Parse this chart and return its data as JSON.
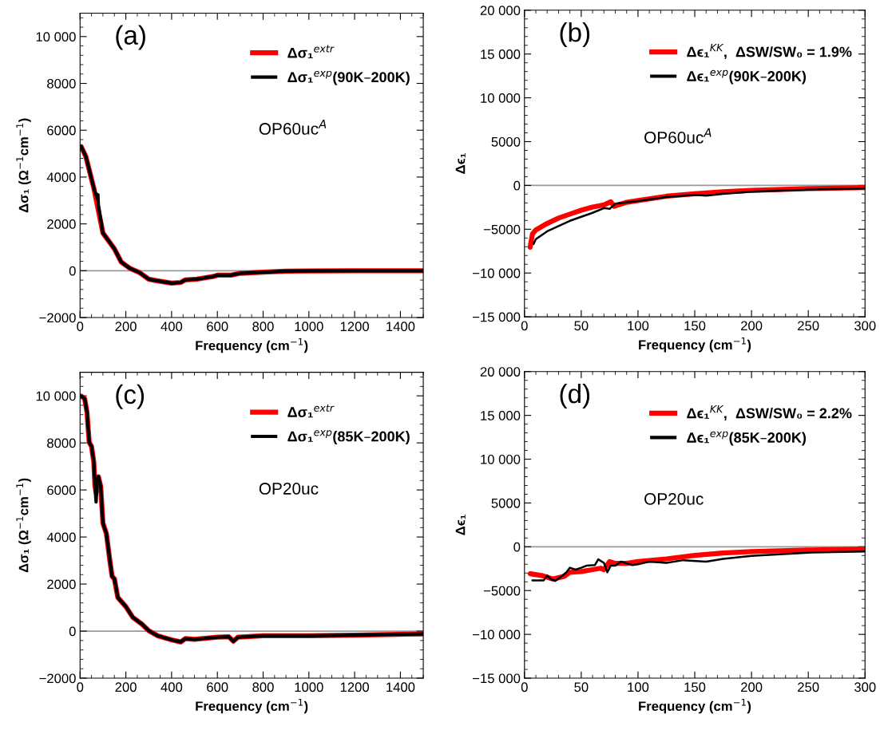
{
  "chart_data": [
    {
      "type": "line",
      "xlabel": "Frequency (cm$^{−1}$)",
      "ylabel": "Δσ₁ (Ω$^{−1}$cm$^{−1}$)",
      "annotations": [
        "(a)",
        "OP60uc$^{A}$"
      ],
      "xlim": [
        0,
        1500
      ],
      "xticks": [
        0,
        200,
        400,
        600,
        800,
        1000,
        1200,
        1400
      ],
      "ylim": [
        -2000,
        11000
      ],
      "yticks": [
        {
          "value": -2000,
          "label": "−2000"
        },
        0,
        2000,
        4000,
        6000,
        8000,
        {
          "value": 10000,
          "label": "10 000"
        }
      ],
      "legend": "top right",
      "grid": false,
      "ref_lines": [
        {
          "axis": "y",
          "value": 0,
          "color": "#999999"
        }
      ],
      "series": [
        {
          "name": "Δσ₁$^{extr}$",
          "color": "#ff0000",
          "x": [
            5,
            25,
            60,
            100,
            150,
            180,
            220,
            260,
            300,
            330,
            400,
            440,
            460,
            510,
            580,
            600,
            660,
            700,
            800,
            900,
            1000,
            1200,
            1500
          ],
          "values": [
            5300,
            4880,
            3530,
            1610,
            935,
            370,
            90,
            -80,
            -360,
            -420,
            -530,
            -500,
            -390,
            -360,
            -250,
            -190,
            -190,
            -110,
            -60,
            -20,
            -10,
            0,
            0
          ]
        },
        {
          "name": "Δσ₁$^{exp}$(90K–200K)",
          "color": "#000000",
          "x": [
            5,
            25,
            60,
            75,
            78,
            80,
            100,
            150,
            180,
            220,
            260,
            300,
            330,
            400,
            440,
            460,
            510,
            580,
            600,
            660,
            700,
            800,
            900,
            1000,
            1200,
            1500
          ],
          "values": [
            5300,
            4880,
            3530,
            3080,
            3250,
            2800,
            1610,
            935,
            370,
            90,
            -80,
            -360,
            -420,
            -530,
            -500,
            -390,
            -360,
            -250,
            -190,
            -190,
            -110,
            -60,
            -20,
            -10,
            0,
            0
          ]
        }
      ]
    },
    {
      "type": "line",
      "xlabel": "Frequency (cm$^{−1}$)",
      "ylabel": "Δϵ₁",
      "annotations": [
        "(b)",
        "OP60uc$^{A}$"
      ],
      "xlim": [
        0,
        300
      ],
      "xticks": [
        0,
        50,
        100,
        150,
        200,
        250,
        300
      ],
      "ylim": [
        -15000,
        20000
      ],
      "yticks": [
        {
          "value": -15000,
          "label": "−15 000"
        },
        {
          "value": -10000,
          "label": "−10 000"
        },
        {
          "value": -5000,
          "label": "−5000"
        },
        0,
        5000,
        {
          "value": 10000,
          "label": "10 000"
        },
        {
          "value": 15000,
          "label": "15 000"
        },
        {
          "value": 20000,
          "label": "20 000"
        }
      ],
      "legend": "top right",
      "grid": false,
      "ref_lines": [
        {
          "axis": "y",
          "value": 0,
          "color": "#999999"
        }
      ],
      "series": [
        {
          "name": "Δϵ₁$^{KK}$,  ΔSW/SW₀ = 1.9%",
          "color": "#ff0000",
          "x": [
            5,
            7,
            10,
            20,
            30,
            40,
            50,
            60,
            70,
            76,
            79,
            90,
            100,
            125,
            150,
            175,
            200,
            250,
            300
          ],
          "values": [
            -7050,
            -5540,
            -5090,
            -4340,
            -3735,
            -3280,
            -2830,
            -2470,
            -2230,
            -1870,
            -2380,
            -1930,
            -1720,
            -1235,
            -960,
            -720,
            -570,
            -360,
            -250
          ]
        },
        {
          "name": "Δϵ₁$^{exp}$(90K–200K)",
          "color": "#000000",
          "x": [
            8,
            10,
            20,
            30,
            40,
            50,
            60,
            70,
            75,
            80,
            100,
            125,
            150,
            160,
            175,
            200,
            250,
            300
          ],
          "values": [
            -6690,
            -6140,
            -5240,
            -4640,
            -4040,
            -3580,
            -3130,
            -2590,
            -2680,
            -2080,
            -1780,
            -1330,
            -1080,
            -1170,
            -960,
            -720,
            -480,
            -360
          ]
        }
      ]
    },
    {
      "type": "line",
      "xlabel": "Frequency (cm$^{−1}$)",
      "ylabel": "Δσ₁ (Ω$^{−1}$cm$^{−1}$)",
      "annotations": [
        "(c)",
        "OP20uc"
      ],
      "xlim": [
        0,
        1500
      ],
      "xticks": [
        0,
        200,
        400,
        600,
        800,
        1000,
        1200,
        1400
      ],
      "ylim": [
        -2000,
        11000
      ],
      "yticks": [
        {
          "value": -2000,
          "label": "−2000"
        },
        0,
        2000,
        4000,
        6000,
        8000,
        {
          "value": 10000,
          "label": "10 000"
        }
      ],
      "legend": "top right",
      "grid": false,
      "ref_lines": [
        {
          "axis": "y",
          "value": 0,
          "color": "#999999"
        }
      ],
      "series": [
        {
          "name": "Δσ₁$^{extr}$",
          "color": "#ff0000",
          "x": [
            5,
            20,
            30,
            40,
            50,
            60,
            65,
            70,
            75,
            80,
            90,
            100,
            115,
            130,
            140,
            150,
            165,
            200,
            230,
            270,
            300,
            340,
            400,
            440,
            460,
            500,
            600,
            650,
            670,
            690,
            800,
            1000,
            1200,
            1500
          ],
          "values": [
            9990,
            9880,
            9320,
            8020,
            7850,
            7180,
            6160,
            5900,
            6390,
            6560,
            6160,
            4590,
            4140,
            3010,
            2330,
            2220,
            1430,
            1040,
            590,
            300,
            20,
            -200,
            -370,
            -460,
            -320,
            -350,
            -260,
            -240,
            -430,
            -260,
            -200,
            -200,
            -170,
            -120
          ]
        },
        {
          "name": "Δσ₁$^{exp}$(85K–200K)",
          "color": "#000000",
          "x": [
            5,
            20,
            30,
            40,
            50,
            60,
            65,
            70,
            75,
            80,
            90,
            100,
            115,
            130,
            140,
            150,
            165,
            200,
            230,
            270,
            300,
            340,
            400,
            440,
            460,
            500,
            600,
            650,
            670,
            690,
            800,
            1000,
            1200,
            1500
          ],
          "values": [
            9990,
            9880,
            9320,
            8020,
            7850,
            7180,
            6160,
            5490,
            6390,
            6560,
            6160,
            4590,
            4140,
            3010,
            2330,
            2220,
            1430,
            1040,
            590,
            300,
            20,
            -200,
            -370,
            -460,
            -320,
            -350,
            -260,
            -240,
            -430,
            -260,
            -200,
            -200,
            -170,
            -120
          ]
        }
      ]
    },
    {
      "type": "line",
      "xlabel": "Frequency (cm$^{−1}$)",
      "ylabel": "Δϵ₁",
      "annotations": [
        "(d)",
        "OP20uc"
      ],
      "xlim": [
        0,
        300
      ],
      "xticks": [
        0,
        50,
        100,
        150,
        200,
        250,
        300
      ],
      "ylim": [
        -15000,
        20000
      ],
      "yticks": [
        {
          "value": -15000,
          "label": "−15 000"
        },
        {
          "value": -10000,
          "label": "−10 000"
        },
        {
          "value": -5000,
          "label": "−5000"
        },
        0,
        5000,
        {
          "value": 10000,
          "label": "10 000"
        },
        {
          "value": 15000,
          "label": "15 000"
        },
        {
          "value": 20000,
          "label": "20 000"
        }
      ],
      "legend": "top right",
      "grid": false,
      "ref_lines": [
        {
          "axis": "y",
          "value": 0,
          "color": "#999999"
        }
      ],
      "series": [
        {
          "name": "Δϵ₁$^{KK}$,  ΔSW/SW₀ = 2.2%",
          "color": "#ff0000",
          "x": [
            5,
            15,
            25,
            35,
            40,
            50,
            60,
            67,
            70,
            75,
            80,
            90,
            100,
            125,
            150,
            175,
            200,
            250,
            300
          ],
          "values": [
            -3070,
            -3280,
            -3680,
            -3370,
            -2910,
            -2820,
            -2610,
            -2450,
            -2610,
            -1690,
            -1900,
            -1900,
            -1690,
            -1380,
            -980,
            -710,
            -550,
            -370,
            -250
          ]
        },
        {
          "name": "Δϵ₁$^{exp}$(85K–200K)",
          "color": "#000000",
          "x": [
            7,
            17,
            20,
            23,
            27,
            32,
            37,
            40,
            45,
            50,
            55,
            62,
            65,
            70,
            73,
            76,
            80,
            85,
            95,
            100,
            110,
            125,
            140,
            160,
            175,
            200,
            250,
            300
          ],
          "values": [
            -3830,
            -3830,
            -3280,
            -3680,
            -3900,
            -3440,
            -2910,
            -2390,
            -2610,
            -2390,
            -2150,
            -2090,
            -1440,
            -1840,
            -2910,
            -2150,
            -2150,
            -1690,
            -2090,
            -1990,
            -1690,
            -1840,
            -1530,
            -1690,
            -1380,
            -1040,
            -670,
            -550
          ]
        }
      ]
    }
  ]
}
